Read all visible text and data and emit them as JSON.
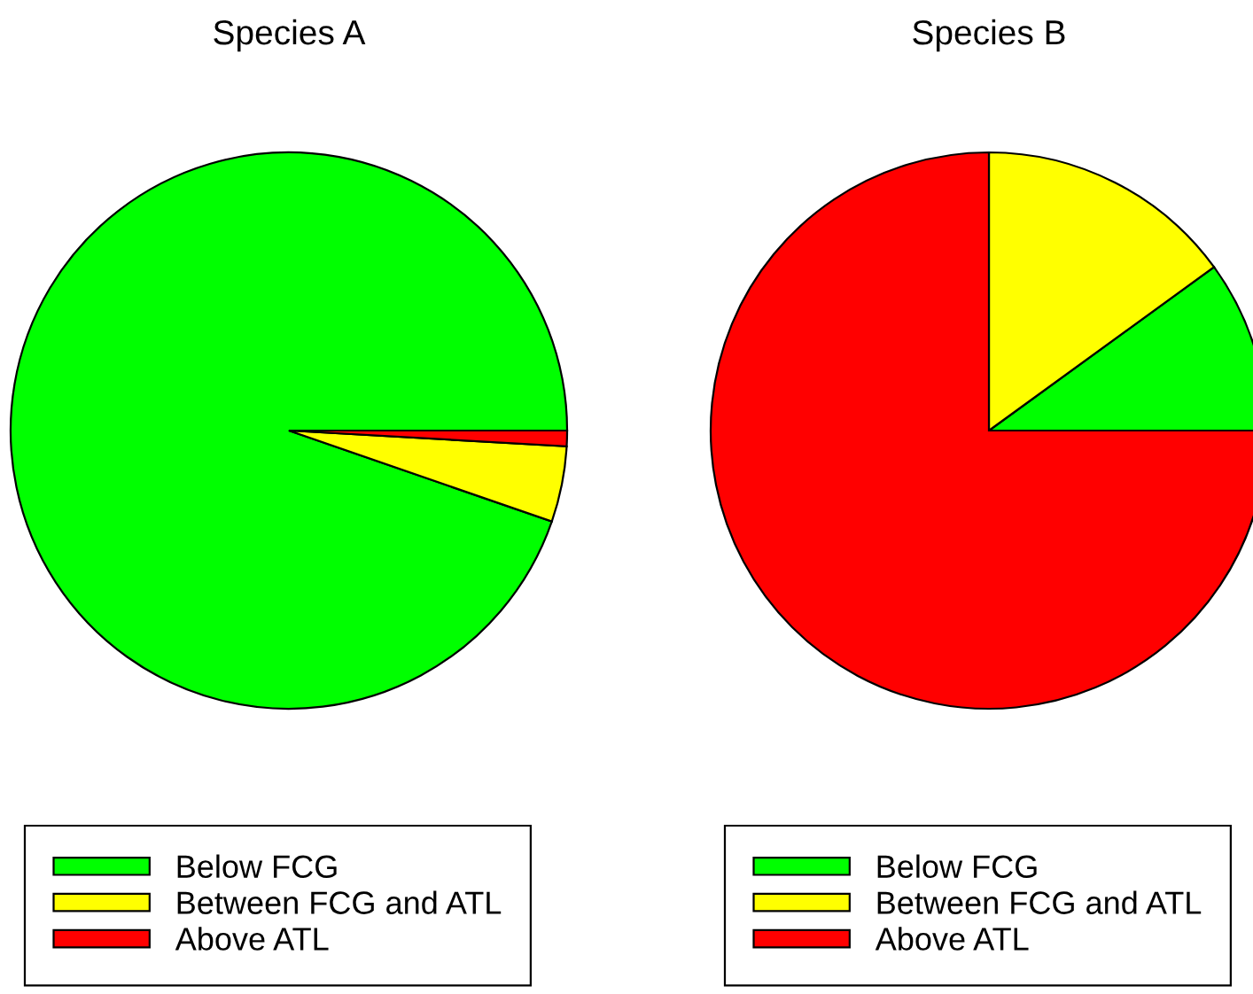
{
  "chart_data": [
    {
      "type": "pie",
      "title": "Species A",
      "categories": [
        "Below FCG",
        "Between FCG and ATL",
        "Above ATL"
      ],
      "values": [
        94.7,
        4.4,
        0.9
      ],
      "colors": [
        "#00ff00",
        "#ffff00",
        "#ff0000"
      ],
      "legend": "bottom"
    },
    {
      "type": "pie",
      "title": "Species B",
      "categories": [
        "Below FCG",
        "Between FCG and ATL",
        "Above ATL"
      ],
      "values": [
        10,
        15,
        75
      ],
      "colors": [
        "#00ff00",
        "#ffff00",
        "#ff0000"
      ],
      "legend": "bottom"
    }
  ]
}
